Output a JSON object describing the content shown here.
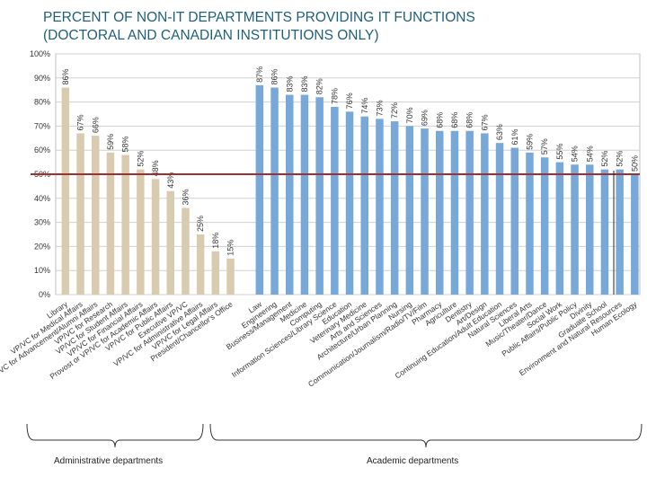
{
  "chart_data": {
    "type": "bar",
    "title_lines": [
      "PERCENT OF NON-IT DEPARTMENTS PROVIDING IT FUNCTIONS",
      "(DOCTORAL AND CANADIAN INSTITUTIONS ONLY)"
    ],
    "ylim": [
      0,
      100
    ],
    "y_ticks": [
      "0%",
      "10%",
      "20%",
      "30%",
      "40%",
      "50%",
      "60%",
      "70%",
      "80%",
      "90%",
      "100%"
    ],
    "grid": true,
    "reference_line": 50,
    "reference_color": "#a03030",
    "groups": [
      {
        "name": "Administrative departments",
        "color": "#d9cbb0",
        "categories": [
          "Library",
          "VP/VC for Medical Affairs",
          "VP/VC for Advancement/Alumni Affairs",
          "VP/VC for Research",
          "VP/VC for Student Affairs",
          "VP/VC for Financial Affairs",
          "Provost or VP/VC for Academic Affairs",
          "VP/VC for Public Affairs",
          "Executive VP/VC",
          "VP/VC for Administrative Affairs",
          "VP/VC for Legal Affairs",
          "President/Chancellor's Office"
        ],
        "values": [
          86,
          67,
          66,
          59,
          58,
          52,
          48,
          43,
          36,
          25,
          18,
          15
        ],
        "value_labels": [
          "86%",
          "67%",
          "66%",
          "59%",
          "58%",
          "52%",
          "48%",
          "43%",
          "36%",
          "25%",
          "18%",
          "15%"
        ]
      },
      {
        "name": "Academic departments",
        "color": "#77a8d8",
        "categories": [
          "Law",
          "Engineering",
          "Business/Management",
          "Medicine",
          "Computing",
          "Information Sciences/Library Science",
          "Education",
          "Veterinary Medicine",
          "Arts and Sciences",
          "Architecture/Urban Planning",
          "Nursing",
          "Communication/Journalism/Radio/TV/Film",
          "Pharmacy",
          "Agriculture",
          "Dentistry",
          "Art/Design",
          "Continuing Education/Adult Education",
          "Natural Sciences",
          "Liberal Arts",
          "Music/Theater/Dance",
          "Social Work",
          "Public Affairs/Public Policy",
          "Divinity",
          "Graduate School",
          "Environment and Natural Resources",
          "Human Ecology"
        ],
        "values": [
          87,
          86,
          83,
          83,
          82,
          78,
          76,
          74,
          73,
          72,
          70,
          69,
          68,
          68,
          68,
          67,
          63,
          61,
          59,
          57,
          55,
          54,
          54,
          52,
          52,
          50
        ],
        "value_labels": [
          "87%",
          "86%",
          "83%",
          "83%",
          "82%",
          "78%",
          "76%",
          "74%",
          "73%",
          "72%",
          "70%",
          "69%",
          "68%",
          "68%",
          "68%",
          "67%",
          "63%",
          "61%",
          "59%",
          "57%",
          "55%",
          "54%",
          "54%",
          "52%",
          "52%",
          "50%"
        ]
      }
    ]
  }
}
